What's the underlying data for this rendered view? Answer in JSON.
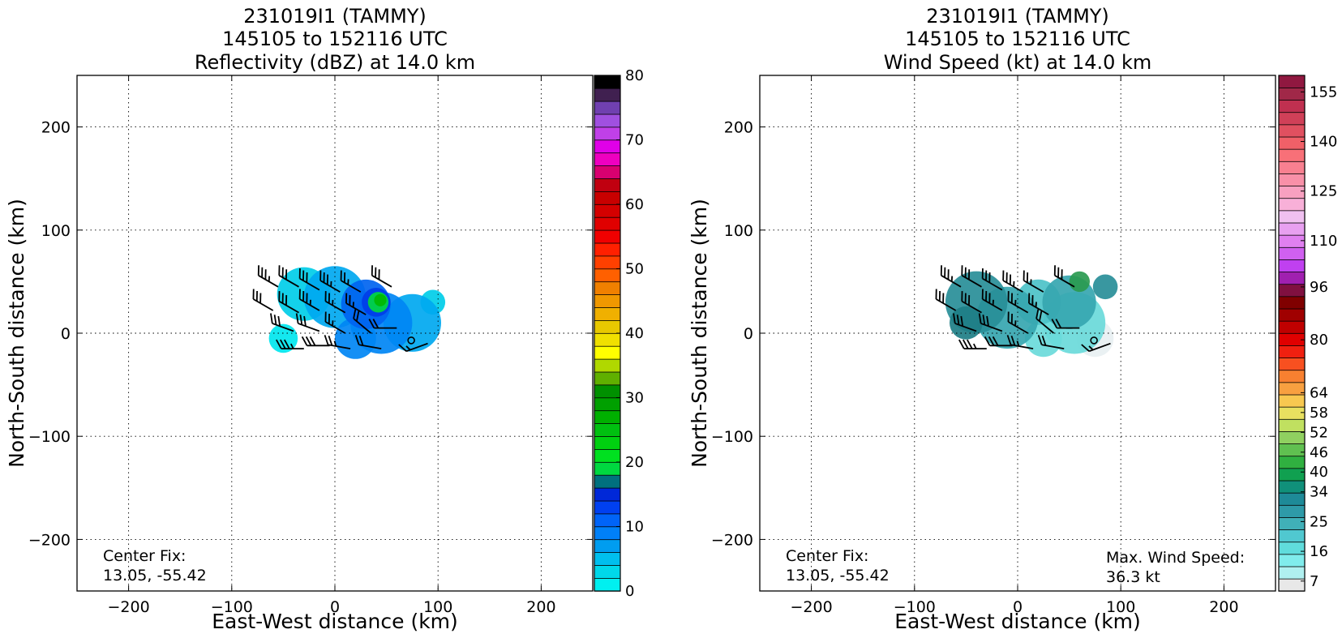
{
  "chart_data": [
    {
      "type": "heatmap",
      "title_lines": [
        "231019I1 (TAMMY)",
        "145105 to 152116 UTC",
        "Reflectivity (dBZ) at 14.0 km"
      ],
      "xlabel": "East-West distance (km)",
      "ylabel": "North-South distance (km)",
      "xlim": [
        -250,
        250
      ],
      "ylim": [
        -250,
        250
      ],
      "xticks": [
        -200,
        -100,
        0,
        100,
        200
      ],
      "yticks": [
        -200,
        -100,
        0,
        100,
        200
      ],
      "xtick_labels": [
        "−200",
        "−100",
        "0",
        "100",
        "200"
      ],
      "ytick_labels": [
        "−200",
        "−100",
        "0",
        "100",
        "200"
      ],
      "grid": true,
      "annotation": "Center Fix:\n13.05, -55.42",
      "center_fix": "13.05, -55.42",
      "colorbar": {
        "min": 0,
        "max": 80,
        "tick_values": [
          0,
          10,
          20,
          30,
          40,
          50,
          60,
          70,
          80
        ],
        "tick_labels": [
          "0",
          "10",
          "20",
          "30",
          "40",
          "50",
          "60",
          "70",
          "80"
        ],
        "colors": [
          "#00f0f0",
          "#00d8ea",
          "#00bfee",
          "#009df0",
          "#0080f8",
          "#0064f8",
          "#0040f0",
          "#0028d8",
          "#00707e",
          "#00d840",
          "#00e020",
          "#00d010",
          "#00c010",
          "#00b000",
          "#00a000",
          "#009000",
          "#60b000",
          "#b0d800",
          "#ffff00",
          "#f0e000",
          "#e8c800",
          "#f0b000",
          "#f09800",
          "#f08000",
          "#ff6000",
          "#ff4000",
          "#ff2000",
          "#f00000",
          "#e00000",
          "#d40000",
          "#c80000",
          "#c00010",
          "#d80070",
          "#ee00c0",
          "#e000e8",
          "#c040e8",
          "#a050e0",
          "#7040b0",
          "#402050",
          "#000000"
        ]
      },
      "field": {
        "palette": [
          "#00e6ee",
          "#00cde8",
          "#00a8f0",
          "#0086f4",
          "#0064f0",
          "#003ee8",
          "#00d840",
          "#00b800"
        ],
        "blobs": [
          {
            "x": -30,
            "y": 38,
            "r": 26,
            "level": 1
          },
          {
            "x": 0,
            "y": 35,
            "r": 30,
            "level": 2
          },
          {
            "x": 30,
            "y": 28,
            "r": 24,
            "level": 4
          },
          {
            "x": 45,
            "y": 10,
            "r": 30,
            "level": 3
          },
          {
            "x": 75,
            "y": 10,
            "r": 28,
            "level": 2
          },
          {
            "x": 20,
            "y": -5,
            "r": 20,
            "level": 3
          },
          {
            "x": 40,
            "y": 30,
            "r": 14,
            "level": 5
          },
          {
            "x": 42,
            "y": 30,
            "r": 10,
            "level": 6
          },
          {
            "x": 44,
            "y": 32,
            "r": 6,
            "level": 7
          },
          {
            "x": 95,
            "y": 30,
            "r": 12,
            "level": 1
          },
          {
            "x": -50,
            "y": -5,
            "r": 14,
            "level": 0
          }
        ]
      },
      "center_marker": {
        "x": 74,
        "y": -7
      },
      "wind_barbs": [
        {
          "x": -55,
          "y": 45,
          "dir": 300,
          "kt": 35
        },
        {
          "x": -35,
          "y": 45,
          "dir": 300,
          "kt": 30
        },
        {
          "x": -15,
          "y": 42,
          "dir": 300,
          "kt": 30
        },
        {
          "x": 5,
          "y": 40,
          "dir": 300,
          "kt": 35
        },
        {
          "x": 25,
          "y": 40,
          "dir": 300,
          "kt": 25
        },
        {
          "x": 55,
          "y": 45,
          "dir": 300,
          "kt": 30
        },
        {
          "x": -60,
          "y": 22,
          "dir": 300,
          "kt": 30
        },
        {
          "x": -35,
          "y": 20,
          "dir": 300,
          "kt": 30
        },
        {
          "x": -15,
          "y": 22,
          "dir": 300,
          "kt": 35
        },
        {
          "x": 10,
          "y": 20,
          "dir": 300,
          "kt": 25
        },
        {
          "x": 30,
          "y": 18,
          "dir": 300,
          "kt": 25
        },
        {
          "x": -40,
          "y": 2,
          "dir": 290,
          "kt": 30
        },
        {
          "x": -15,
          "y": 2,
          "dir": 290,
          "kt": 30
        },
        {
          "x": 10,
          "y": 0,
          "dir": 300,
          "kt": 25
        },
        {
          "x": 35,
          "y": 0,
          "dir": 310,
          "kt": 20
        },
        {
          "x": 60,
          "y": 5,
          "dir": 270,
          "kt": 20
        },
        {
          "x": -30,
          "y": -15,
          "dir": 270,
          "kt": 35
        },
        {
          "x": -5,
          "y": -12,
          "dir": 270,
          "kt": 30
        },
        {
          "x": 15,
          "y": -15,
          "dir": 280,
          "kt": 25
        },
        {
          "x": 45,
          "y": -15,
          "dir": 280,
          "kt": 20
        },
        {
          "x": 90,
          "y": -10,
          "dir": 250,
          "kt": 15
        }
      ]
    },
    {
      "type": "heatmap",
      "title_lines": [
        "231019I1 (TAMMY)",
        "145105 to 152116 UTC",
        "Wind Speed (kt) at 14.0 km"
      ],
      "xlabel": "East-West distance (km)",
      "ylabel": "North-South distance (km)",
      "xlim": [
        -250,
        250
      ],
      "ylim": [
        -250,
        250
      ],
      "xticks": [
        -200,
        -100,
        0,
        100,
        200
      ],
      "yticks": [
        -200,
        -100,
        0,
        100,
        200
      ],
      "xtick_labels": [
        "−200",
        "−100",
        "0",
        "100",
        "200"
      ],
      "ytick_labels": [
        "−200",
        "−100",
        "0",
        "100",
        "200"
      ],
      "grid": true,
      "annotation": "Center Fix:\n13.05, -55.42",
      "center_fix": "13.05, -55.42",
      "annotation_right": "Max. Wind Speed:\n36.3 kt",
      "max_wind_speed_kt": 36.3,
      "colorbar": {
        "min": 4,
        "max": 160,
        "tick_values": [
          7,
          16,
          25,
          34,
          40,
          46,
          52,
          58,
          64,
          80,
          96,
          110,
          125,
          140,
          155
        ],
        "tick_labels": [
          "7",
          "16",
          "25",
          "34",
          "40",
          "46",
          "52",
          "58",
          "64",
          "80",
          "96",
          "110",
          "125",
          "140",
          "155"
        ],
        "colors": [
          "#e8e8e8",
          "#b0f0f0",
          "#80ecec",
          "#60dcdc",
          "#50c8d0",
          "#40b0b8",
          "#2e9aa8",
          "#1e8a98",
          "#10907a",
          "#10a050",
          "#30b040",
          "#60c050",
          "#90d060",
          "#c0e060",
          "#e8e060",
          "#f8c850",
          "#f8a040",
          "#f88030",
          "#f85020",
          "#f02010",
          "#e00000",
          "#c00000",
          "#a00000",
          "#800000",
          "#801040",
          "#a020b0",
          "#c040f0",
          "#d060f0",
          "#e080f0",
          "#e8a0f0",
          "#f0c0f0",
          "#f8b0d8",
          "#f8a0c0",
          "#f890a8",
          "#f88090",
          "#f87078",
          "#f06068",
          "#e05060",
          "#d04058",
          "#c03050",
          "#a02848",
          "#901840"
        ]
      },
      "field": {
        "palette": [
          "#e8f0f2",
          "#a8ecec",
          "#6adada",
          "#4cc2c8",
          "#36a6b0",
          "#288e98",
          "#1e7e86",
          "#2a9a50"
        ],
        "blobs": [
          {
            "x": -40,
            "y": 30,
            "r": 30,
            "level": 5
          },
          {
            "x": -10,
            "y": 15,
            "r": 30,
            "level": 4
          },
          {
            "x": 20,
            "y": 30,
            "r": 22,
            "level": 3
          },
          {
            "x": 50,
            "y": 30,
            "r": 26,
            "level": 4
          },
          {
            "x": 55,
            "y": 10,
            "r": 30,
            "level": 2
          },
          {
            "x": 75,
            "y": -5,
            "r": 18,
            "level": 0
          },
          {
            "x": 25,
            "y": -5,
            "r": 18,
            "level": 2
          },
          {
            "x": -50,
            "y": 10,
            "r": 16,
            "level": 6
          },
          {
            "x": 60,
            "y": 50,
            "r": 10,
            "level": 7
          },
          {
            "x": 85,
            "y": 45,
            "r": 12,
            "level": 5
          }
        ]
      },
      "center_marker": {
        "x": 74,
        "y": -7
      },
      "wind_barbs": [
        {
          "x": -55,
          "y": 45,
          "dir": 300,
          "kt": 35
        },
        {
          "x": -35,
          "y": 45,
          "dir": 300,
          "kt": 30
        },
        {
          "x": -15,
          "y": 42,
          "dir": 300,
          "kt": 30
        },
        {
          "x": 5,
          "y": 40,
          "dir": 300,
          "kt": 35
        },
        {
          "x": 25,
          "y": 40,
          "dir": 300,
          "kt": 25
        },
        {
          "x": 55,
          "y": 45,
          "dir": 300,
          "kt": 30
        },
        {
          "x": -60,
          "y": 22,
          "dir": 300,
          "kt": 30
        },
        {
          "x": -35,
          "y": 20,
          "dir": 300,
          "kt": 30
        },
        {
          "x": -15,
          "y": 22,
          "dir": 300,
          "kt": 35
        },
        {
          "x": 10,
          "y": 20,
          "dir": 300,
          "kt": 25
        },
        {
          "x": 30,
          "y": 18,
          "dir": 300,
          "kt": 25
        },
        {
          "x": -40,
          "y": 2,
          "dir": 290,
          "kt": 30
        },
        {
          "x": -15,
          "y": 2,
          "dir": 290,
          "kt": 30
        },
        {
          "x": 10,
          "y": 0,
          "dir": 300,
          "kt": 25
        },
        {
          "x": 35,
          "y": 0,
          "dir": 310,
          "kt": 20
        },
        {
          "x": 60,
          "y": 5,
          "dir": 270,
          "kt": 20
        },
        {
          "x": -30,
          "y": -15,
          "dir": 270,
          "kt": 35
        },
        {
          "x": -5,
          "y": -12,
          "dir": 270,
          "kt": 30
        },
        {
          "x": 15,
          "y": -15,
          "dir": 280,
          "kt": 25
        },
        {
          "x": 45,
          "y": -15,
          "dir": 280,
          "kt": 20
        },
        {
          "x": 90,
          "y": -10,
          "dir": 250,
          "kt": 15
        }
      ]
    }
  ]
}
